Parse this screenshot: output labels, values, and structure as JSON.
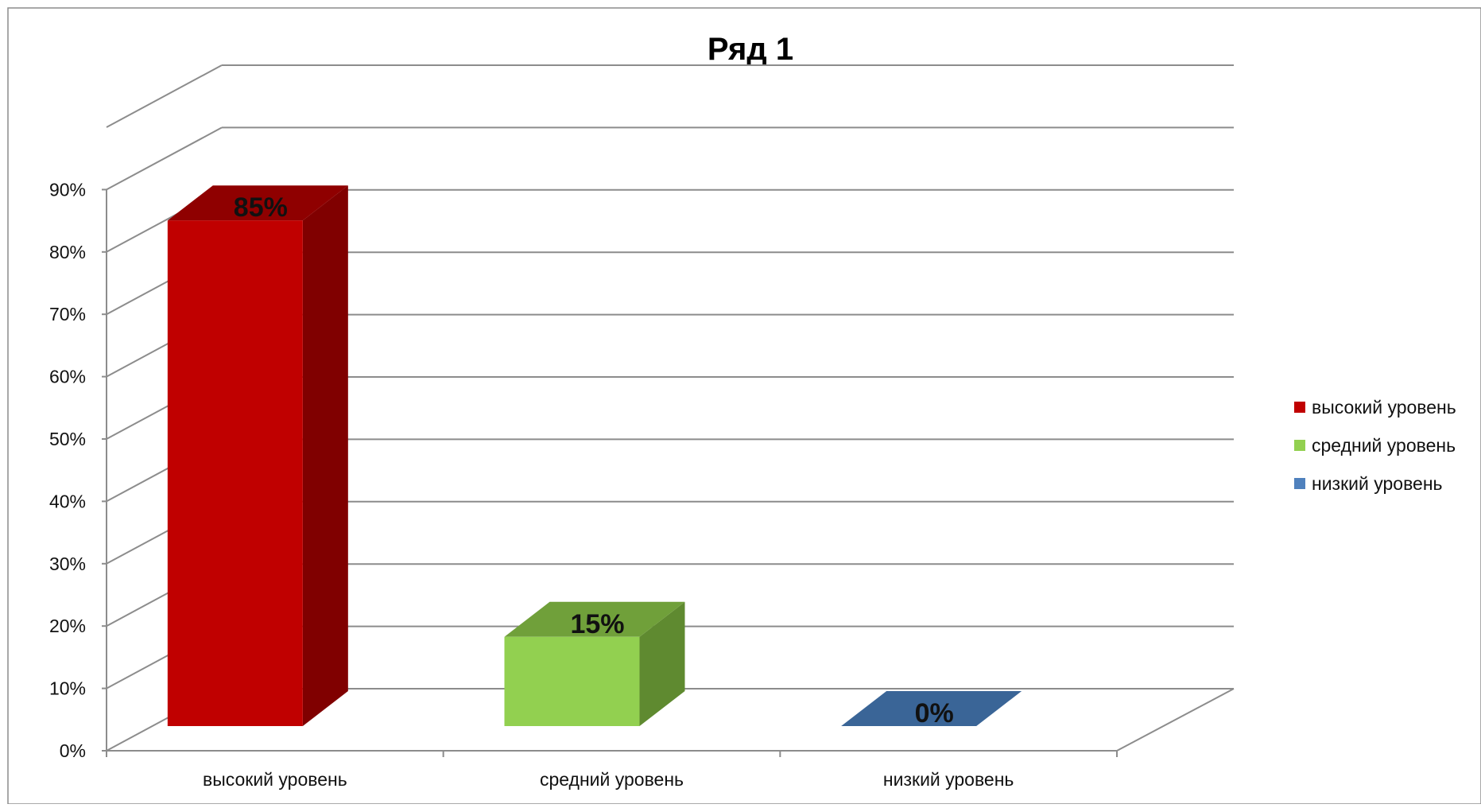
{
  "chart_data": {
    "type": "bar",
    "title": "Ряд 1",
    "categories": [
      "высокий уровень",
      "средний уровень",
      "низкий уровень"
    ],
    "values": [
      85,
      15,
      0
    ],
    "data_labels": [
      "85%",
      "15%",
      "0%"
    ],
    "y_ticks": [
      "0%",
      "10%",
      "20%",
      "30%",
      "40%",
      "50%",
      "60%",
      "70%",
      "80%",
      "90%"
    ],
    "ylim": [
      0,
      100
    ],
    "grid": true,
    "legend_position": "right",
    "legend": [
      {
        "label": "высокий уровень",
        "color": "#c00000"
      },
      {
        "label": "средний уровень",
        "color": "#92d050"
      },
      {
        "label": "низкий уровень",
        "color": "#4f81bd"
      }
    ],
    "colors": {
      "front": [
        "#c00000",
        "#92d050",
        "#3a6597"
      ],
      "top": [
        "#8f0000",
        "#70a03a",
        "#3a6597"
      ],
      "side": [
        "#800000",
        "#5f8a30",
        "#2e5686"
      ]
    }
  }
}
